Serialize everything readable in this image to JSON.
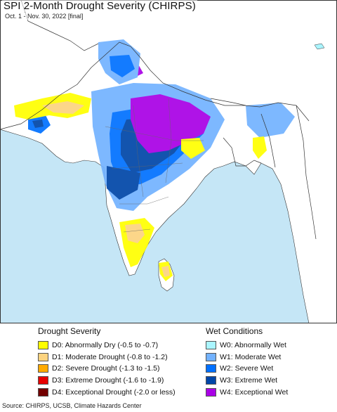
{
  "header": {
    "title": "SPI 2-Month Drought Severity (CHIRPS)",
    "subtitle": "Oct. 1 - Nov. 30, 2022 [final]"
  },
  "colors": {
    "ocean": "#c5e6f6",
    "land": "#ffffff",
    "D0": "#ffff00",
    "D1": "#fcd37f",
    "D2": "#ffaa00",
    "D3": "#e60000",
    "D4": "#730000",
    "W0": "#aaf5ff",
    "W1": "#73b2ff",
    "W2": "#0070ff",
    "W3": "#0046a8",
    "W4": "#a900e6"
  },
  "legend": {
    "drought_heading": "Drought Severity",
    "wet_heading": "Wet Conditions",
    "drought_items": [
      {
        "code": "D0",
        "label": "D0: Abnormally Dry (-0.5 to -0.7)",
        "color": "#ffff00"
      },
      {
        "code": "D1",
        "label": "D1: Moderate Drought (-0.8 to -1.2)",
        "color": "#fcd37f"
      },
      {
        "code": "D2",
        "label": "D2: Severe Drought (-1.3 to -1.5)",
        "color": "#ffaa00"
      },
      {
        "code": "D3",
        "label": "D3: Extreme Drought (-1.6 to -1.9)",
        "color": "#e60000"
      },
      {
        "code": "D4",
        "label": "D4: Exceptional Drought (-2.0 or less)",
        "color": "#730000"
      }
    ],
    "wet_items": [
      {
        "code": "W0",
        "label": "W0: Abnormally Wet",
        "color": "#aaf5ff"
      },
      {
        "code": "W1",
        "label": "W1: Moderate Wet",
        "color": "#73b2ff"
      },
      {
        "code": "W2",
        "label": "W2: Severe Wet",
        "color": "#0070ff"
      },
      {
        "code": "W3",
        "label": "W3: Extreme Wet",
        "color": "#0046a8"
      },
      {
        "code": "W4",
        "label": "W4: Exceptional Wet",
        "color": "#a900e6"
      }
    ]
  },
  "footer": {
    "source": "Source: CHIRPS, UCSB, Climate Hazards Center"
  }
}
